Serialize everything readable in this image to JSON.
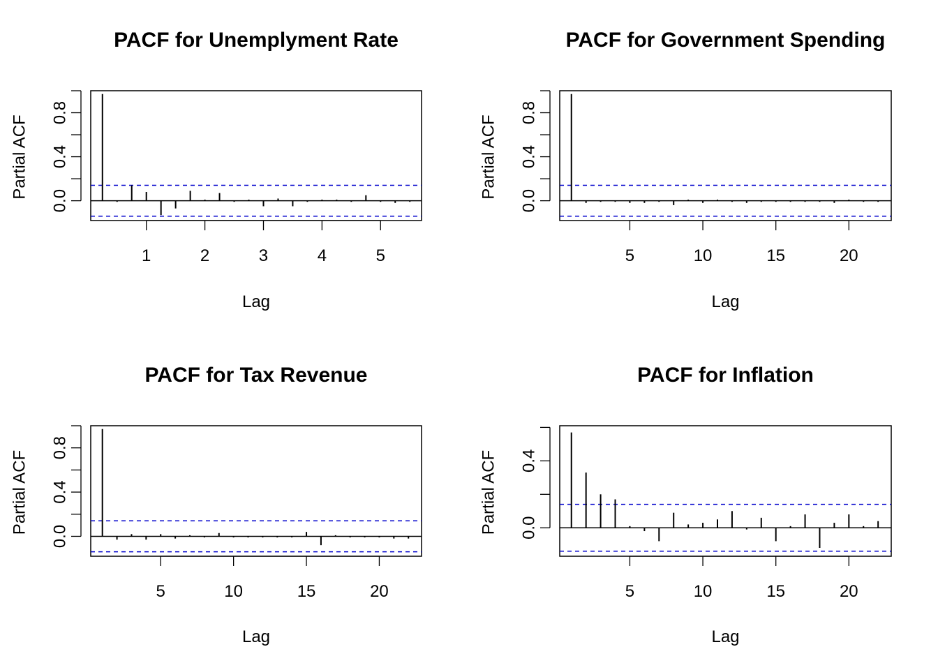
{
  "chart_data": [
    {
      "type": "bar",
      "title": "PACF for Unemplyment Rate",
      "xlabel": "Lag",
      "ylabel": "Partial ACF",
      "xlim": [
        0.05,
        5.7
      ],
      "ylim": [
        -0.18,
        1.0
      ],
      "xticks": [
        1,
        2,
        3,
        4,
        5
      ],
      "yticks": [
        0.0,
        0.4,
        0.8
      ],
      "ytick_labels": [
        "0.0",
        "0.4",
        "0.8"
      ],
      "conf_limit": 0.14,
      "conf_color": "#0000cc",
      "lags": [
        0.25,
        0.5,
        0.75,
        1.0,
        1.25,
        1.5,
        1.75,
        2.0,
        2.25,
        2.5,
        2.75,
        3.0,
        3.25,
        3.5,
        3.75,
        4.0,
        4.25,
        4.5,
        4.75,
        5.0,
        5.25,
        5.5
      ],
      "values": [
        0.97,
        -0.01,
        0.14,
        0.08,
        -0.13,
        -0.07,
        0.09,
        0.01,
        0.07,
        -0.01,
        0.01,
        -0.05,
        0.02,
        -0.05,
        -0.01,
        0.01,
        0.01,
        -0.01,
        0.05,
        -0.01,
        -0.02,
        -0.01
      ]
    },
    {
      "type": "bar",
      "title": "PACF for Government Spending",
      "xlabel": "Lag",
      "ylabel": "Partial ACF",
      "xlim": [
        0.2,
        22.9
      ],
      "ylim": [
        -0.18,
        1.0
      ],
      "xticks": [
        5,
        10,
        15,
        20
      ],
      "yticks": [
        0.0,
        0.4,
        0.8
      ],
      "ytick_labels": [
        "0.0",
        "0.4",
        "0.8"
      ],
      "conf_limit": 0.14,
      "conf_color": "#0000cc",
      "lags": [
        1,
        2,
        3,
        4,
        5,
        6,
        7,
        8,
        9,
        10,
        11,
        12,
        13,
        14,
        15,
        16,
        17,
        18,
        19,
        20,
        21,
        22
      ],
      "values": [
        0.97,
        -0.02,
        -0.01,
        -0.01,
        -0.02,
        -0.02,
        -0.01,
        -0.04,
        0.01,
        -0.02,
        0.01,
        -0.01,
        -0.02,
        -0.01,
        -0.01,
        -0.01,
        -0.01,
        -0.01,
        -0.02,
        0.01,
        -0.01,
        -0.01
      ]
    },
    {
      "type": "bar",
      "title": "PACF for Tax Revenue",
      "xlabel": "Lag",
      "ylabel": "Partial ACF",
      "xlim": [
        0.2,
        22.9
      ],
      "ylim": [
        -0.18,
        1.0
      ],
      "xticks": [
        5,
        10,
        15,
        20
      ],
      "yticks": [
        0.0,
        0.4,
        0.8
      ],
      "ytick_labels": [
        "0.0",
        "0.4",
        "0.8"
      ],
      "conf_limit": 0.14,
      "conf_color": "#0000cc",
      "lags": [
        1,
        2,
        3,
        4,
        5,
        6,
        7,
        8,
        9,
        10,
        11,
        12,
        13,
        14,
        15,
        16,
        17,
        18,
        19,
        20,
        21,
        22
      ],
      "values": [
        0.97,
        -0.03,
        0.02,
        -0.03,
        0.02,
        -0.02,
        0.01,
        -0.01,
        0.03,
        -0.01,
        -0.01,
        -0.01,
        -0.01,
        -0.01,
        0.04,
        -0.08,
        0.01,
        -0.01,
        -0.01,
        -0.01,
        -0.02,
        -0.02
      ]
    },
    {
      "type": "bar",
      "title": "PACF for Inflation",
      "xlabel": "Lag",
      "ylabel": "Partial ACF",
      "xlim": [
        0.2,
        22.9
      ],
      "ylim": [
        -0.17,
        0.61
      ],
      "xticks": [
        5,
        10,
        15,
        20
      ],
      "yticks": [
        0.0,
        0.4
      ],
      "ytick_labels": [
        "0.0",
        "0.4"
      ],
      "extra_yticks": [
        0.2,
        0.6
      ],
      "conf_limit": 0.14,
      "conf_color": "#0000cc",
      "lags": [
        1,
        2,
        3,
        4,
        5,
        6,
        7,
        8,
        9,
        10,
        11,
        12,
        13,
        14,
        15,
        16,
        17,
        18,
        19,
        20,
        21,
        22
      ],
      "values": [
        0.57,
        0.33,
        0.2,
        0.17,
        0.01,
        -0.02,
        -0.08,
        0.09,
        0.02,
        0.03,
        0.05,
        0.1,
        -0.01,
        0.06,
        -0.08,
        0.01,
        0.08,
        -0.12,
        0.03,
        0.08,
        0.01,
        0.04
      ]
    }
  ]
}
